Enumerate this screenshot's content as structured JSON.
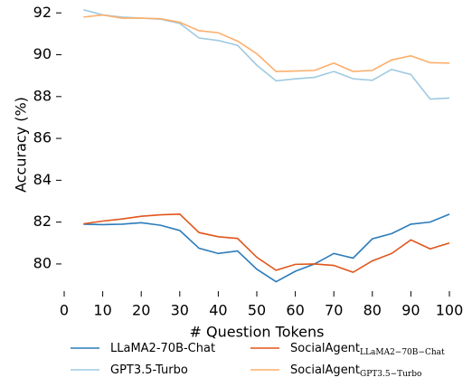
{
  "chart_data": {
    "type": "line",
    "x_label": "# Question Tokens",
    "y_label": "Accuracy (%)",
    "x": [
      5,
      10,
      15,
      20,
      25,
      30,
      35,
      40,
      45,
      50,
      55,
      60,
      65,
      70,
      75,
      80,
      85,
      90,
      95,
      100
    ],
    "series": [
      {
        "name": "LLaMA2-70B-Chat",
        "color": "#2b7bba",
        "values": [
          81.9,
          81.88,
          81.9,
          81.97,
          81.85,
          81.6,
          80.75,
          80.5,
          80.62,
          79.75,
          79.15,
          79.65,
          80.0,
          80.5,
          80.28,
          81.2,
          81.45,
          81.9,
          82.0,
          82.38
        ]
      },
      {
        "name": "GPT3.5-Turbo",
        "color": "#9ecae1",
        "values": [
          92.15,
          91.9,
          91.8,
          91.75,
          91.7,
          91.5,
          90.8,
          90.68,
          90.45,
          89.5,
          88.75,
          88.85,
          88.92,
          89.2,
          88.85,
          88.78,
          89.3,
          89.05,
          87.88,
          87.93
        ]
      },
      {
        "name": "SocialAgent",
        "subscript": "LLaMA2−70B−Chat",
        "color": "#e0561a",
        "values": [
          81.92,
          82.05,
          82.15,
          82.28,
          82.35,
          82.38,
          81.5,
          81.3,
          81.22,
          80.32,
          79.7,
          79.98,
          80.0,
          79.93,
          79.6,
          80.15,
          80.5,
          81.15,
          80.72,
          81.0
        ]
      },
      {
        "name": "SocialAgent",
        "subscript": "GPT3.5−Turbo",
        "color": "#fdae6b",
        "values": [
          91.8,
          91.9,
          91.75,
          91.75,
          91.72,
          91.55,
          91.15,
          91.05,
          90.65,
          90.05,
          89.2,
          89.22,
          89.25,
          89.6,
          89.2,
          89.25,
          89.75,
          89.95,
          89.62,
          89.6
        ]
      }
    ],
    "xlim": [
      0,
      100
    ],
    "xticks": [
      0,
      10,
      20,
      30,
      40,
      50,
      60,
      70,
      80,
      90,
      100
    ],
    "ylim": [
      78.7,
      92.4
    ],
    "yticks": [
      80,
      82,
      84,
      86,
      88,
      90,
      92
    ],
    "grid": false,
    "legend": "bottom"
  }
}
